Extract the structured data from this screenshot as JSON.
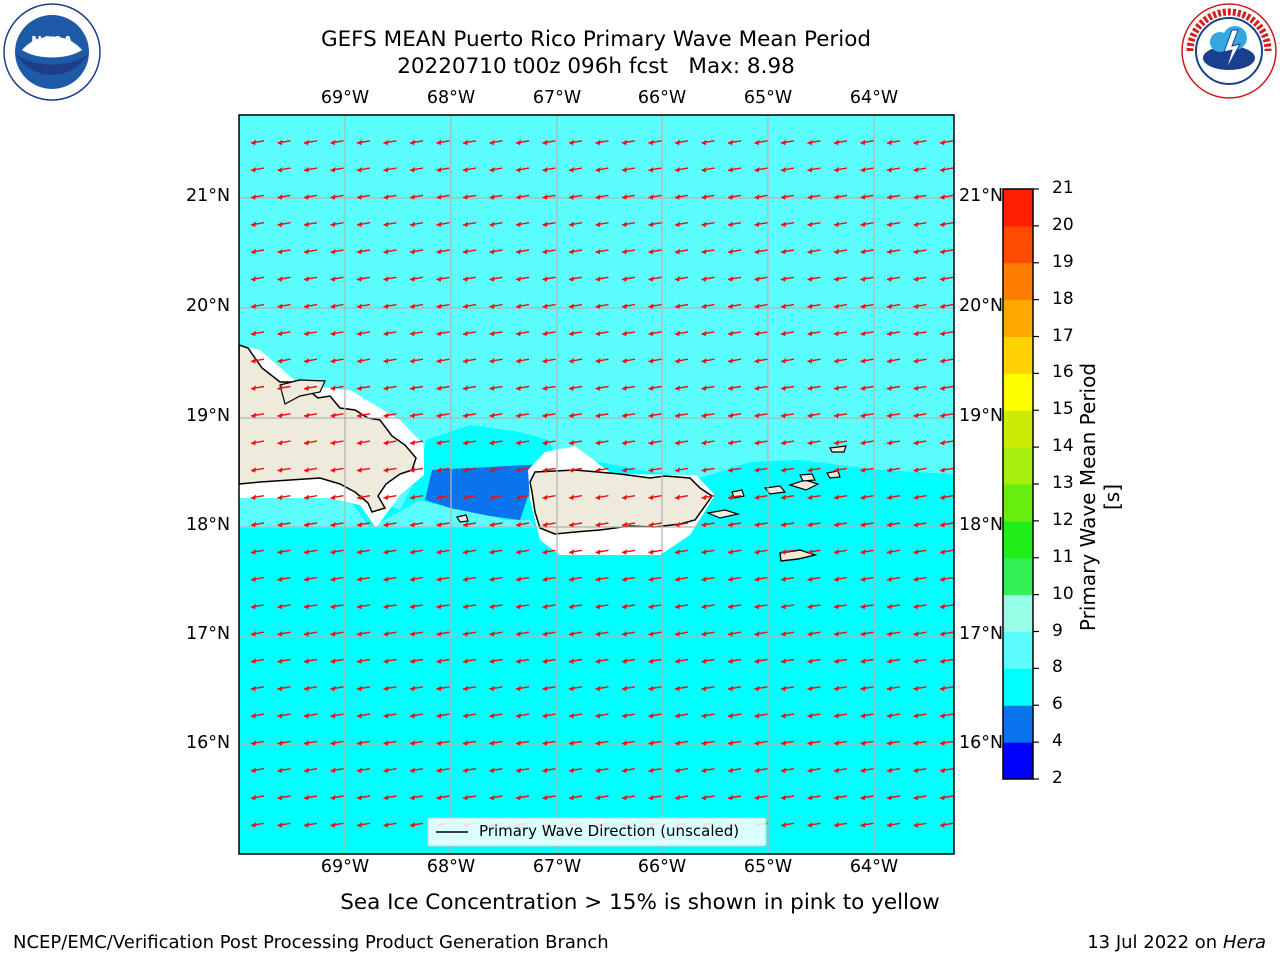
{
  "title_line1": "GEFS MEAN Puerto Rico Primary Wave Mean Period",
  "title_line2": "20220710 t00z 096h fcst   Max: 8.98",
  "lon_labels": [
    "69°W",
    "68°W",
    "67°W",
    "66°W",
    "65°W",
    "64°W"
  ],
  "lat_labels": [
    "21°N",
    "20°N",
    "19°N",
    "18°N",
    "17°N",
    "16°N"
  ],
  "legend_label": "Primary Wave Direction (unscaled)",
  "colorbar": {
    "label": "Primary Wave Mean Period [s]",
    "ticks": [
      "2",
      "4",
      "6",
      "8",
      "9",
      "10",
      "11",
      "12",
      "13",
      "14",
      "15",
      "16",
      "17",
      "18",
      "19",
      "20",
      "21"
    ],
    "colors": [
      "#0000ff",
      "#0a74ee",
      "#00ffff",
      "#5cfdfd",
      "#98fde6",
      "#33f055",
      "#20ee18",
      "#68ee0e",
      "#a6ee0e",
      "#ccec05",
      "#ffff00",
      "#ffd200",
      "#ffa800",
      "#ff7d00",
      "#ff4b00",
      "#ff1e00"
    ]
  },
  "field_colors": {
    "band_6_8": "#00ffff",
    "band_8_9": "#5cfdfd",
    "band_4_6": "#0a74ee",
    "land": "#efebdc",
    "arrow": "#ee1010"
  },
  "ice_note": "Sea Ice Concentration > 15% is shown in pink to yellow",
  "footer_left": "NCEP/EMC/Verification Post Processing Product Generation Branch",
  "footer_date": "13 Jul 2022 on",
  "footer_machine": "Hera",
  "logos": {
    "left": "NOAA",
    "left_ring": "NATIONAL OCEANIC AND ATMOSPHERIC ADMINISTRATION · U.S. DEPARTMENT OF COMMERCE",
    "right_ring": "NATIONAL WEATHER SERVICE"
  }
}
